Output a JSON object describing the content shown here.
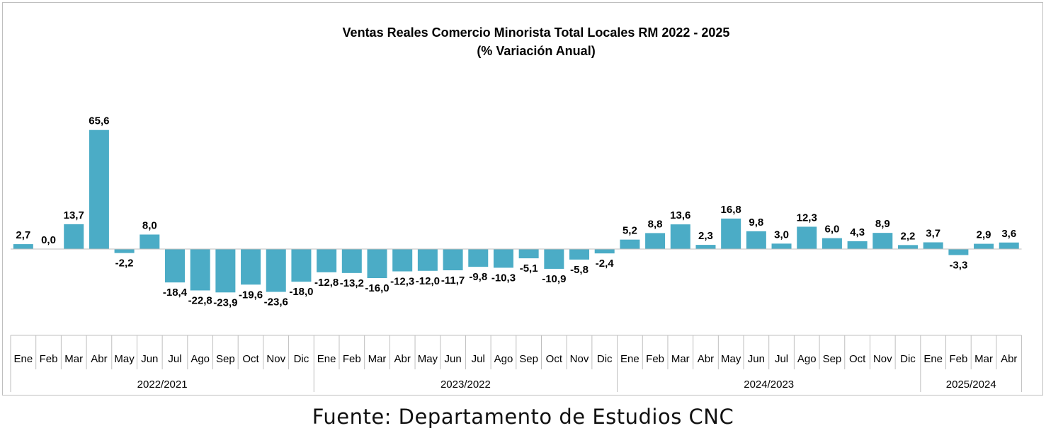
{
  "chart_data": {
    "type": "bar",
    "title": "Ventas Reales Comercio Minorista  Total Locales RM 2022 - 2025",
    "subtitle": "(% Variación Anual)",
    "categories": [
      "Ene",
      "Feb",
      "Mar",
      "Abr",
      "May",
      "Jun",
      "Jul",
      "Ago",
      "Sep",
      "Oct",
      "Nov",
      "Dic",
      "Ene",
      "Feb",
      "Mar",
      "Abr",
      "May",
      "Jun",
      "Jul",
      "Ago",
      "Sep",
      "Oct",
      "Nov",
      "Dic",
      "Ene",
      "Feb",
      "Mar",
      "Abr",
      "May",
      "Jun",
      "Jul",
      "Ago",
      "Sep",
      "Oct",
      "Nov",
      "Dic",
      "Ene",
      "Feb",
      "Mar",
      "Abr"
    ],
    "values": [
      2.7,
      0.0,
      13.7,
      65.6,
      -2.2,
      8.0,
      -18.4,
      -22.8,
      -23.9,
      -19.6,
      -23.6,
      -18.0,
      -12.8,
      -13.2,
      -16.0,
      -12.3,
      -12.0,
      -11.7,
      -9.8,
      -10.3,
      -5.1,
      -10.9,
      -5.8,
      -2.4,
      5.2,
      8.8,
      13.6,
      2.3,
      16.8,
      9.8,
      3.0,
      12.3,
      6.0,
      4.3,
      8.9,
      2.2,
      3.7,
      -3.3,
      2.9,
      3.6
    ],
    "value_labels": [
      "2,7",
      "0,0",
      "13,7",
      "65,6",
      "-2,2",
      "8,0",
      "-18,4",
      "-22,8",
      "-23,9",
      "-19,6",
      "-23,6",
      "-18,0",
      "-12,8",
      "-13,2",
      "-16,0",
      "-12,3",
      "-12,0",
      "-11,7",
      "-9,8",
      "-10,3",
      "-5,1",
      "-10,9",
      "-5,8",
      "-2,4",
      "5,2",
      "8,8",
      "13,6",
      "2,3",
      "16,8",
      "9,8",
      "3,0",
      "12,3",
      "6,0",
      "4,3",
      "8,9",
      "2,2",
      "3,7",
      "-3,3",
      "2,9",
      "3,6"
    ],
    "groups": [
      {
        "label": "2022/2021",
        "start": 0,
        "count": 12
      },
      {
        "label": "2023/2022",
        "start": 12,
        "count": 12
      },
      {
        "label": "2024/2023",
        "start": 24,
        "count": 12
      },
      {
        "label": "2025/2024",
        "start": 36,
        "count": 4
      }
    ],
    "grid": false,
    "legend": "none",
    "bar_color": "#4bacc6"
  },
  "source_caption": "Fuente:  Departamento  de Estudios  CNC"
}
